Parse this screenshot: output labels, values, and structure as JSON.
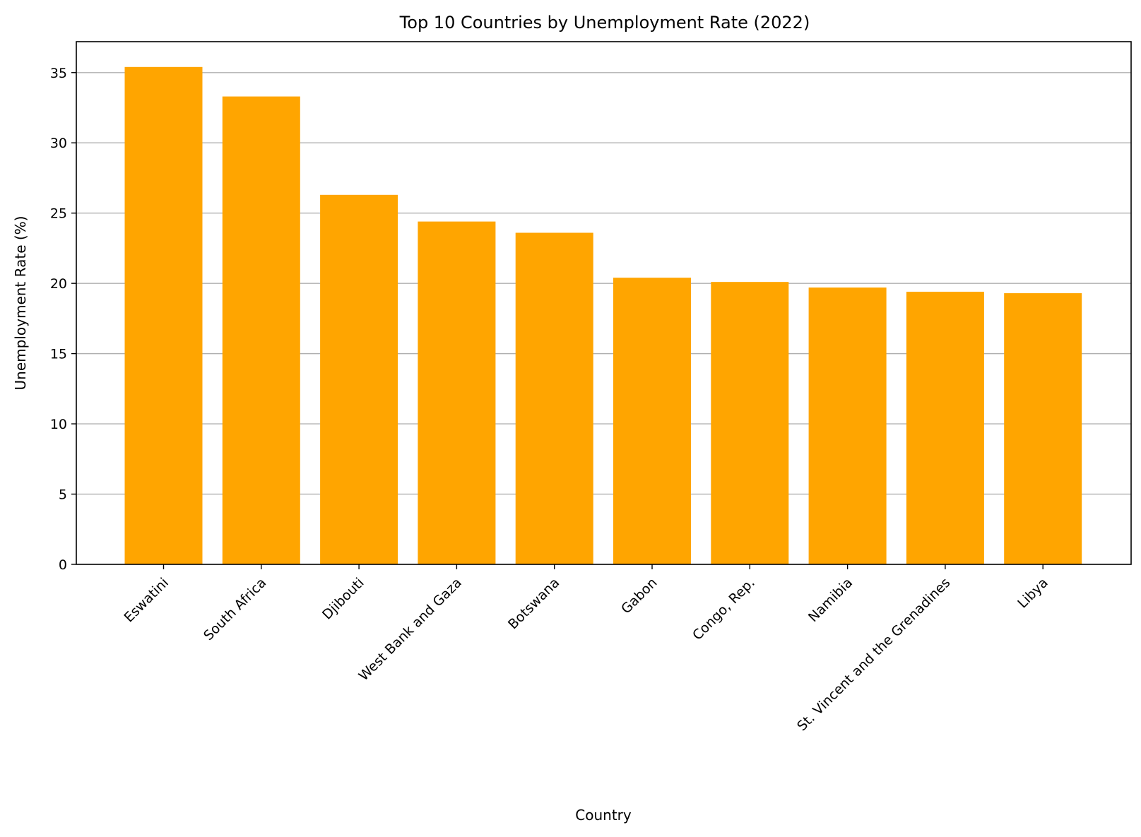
{
  "chart_data": {
    "type": "bar",
    "title": "Top 10 Countries by Unemployment Rate (2022)",
    "xlabel": "Country",
    "ylabel": "Unemployment Rate (%)",
    "categories": [
      "Eswatini",
      "South Africa",
      "Djibouti",
      "West Bank and Gaza",
      "Botswana",
      "Gabon",
      "Congo, Rep.",
      "Namibia",
      "St. Vincent and the Grenadines",
      "Libya"
    ],
    "values": [
      35.4,
      33.3,
      26.3,
      24.4,
      23.6,
      20.4,
      20.1,
      19.7,
      19.4,
      19.3
    ],
    "ylim": [
      0,
      37.2
    ],
    "yticks": [
      0,
      5,
      10,
      15,
      20,
      25,
      30,
      35
    ],
    "grid": "y",
    "bar_color": "#FFA500",
    "grid_color": "#b0b0b0",
    "x_tick_rotation_deg": 45
  }
}
